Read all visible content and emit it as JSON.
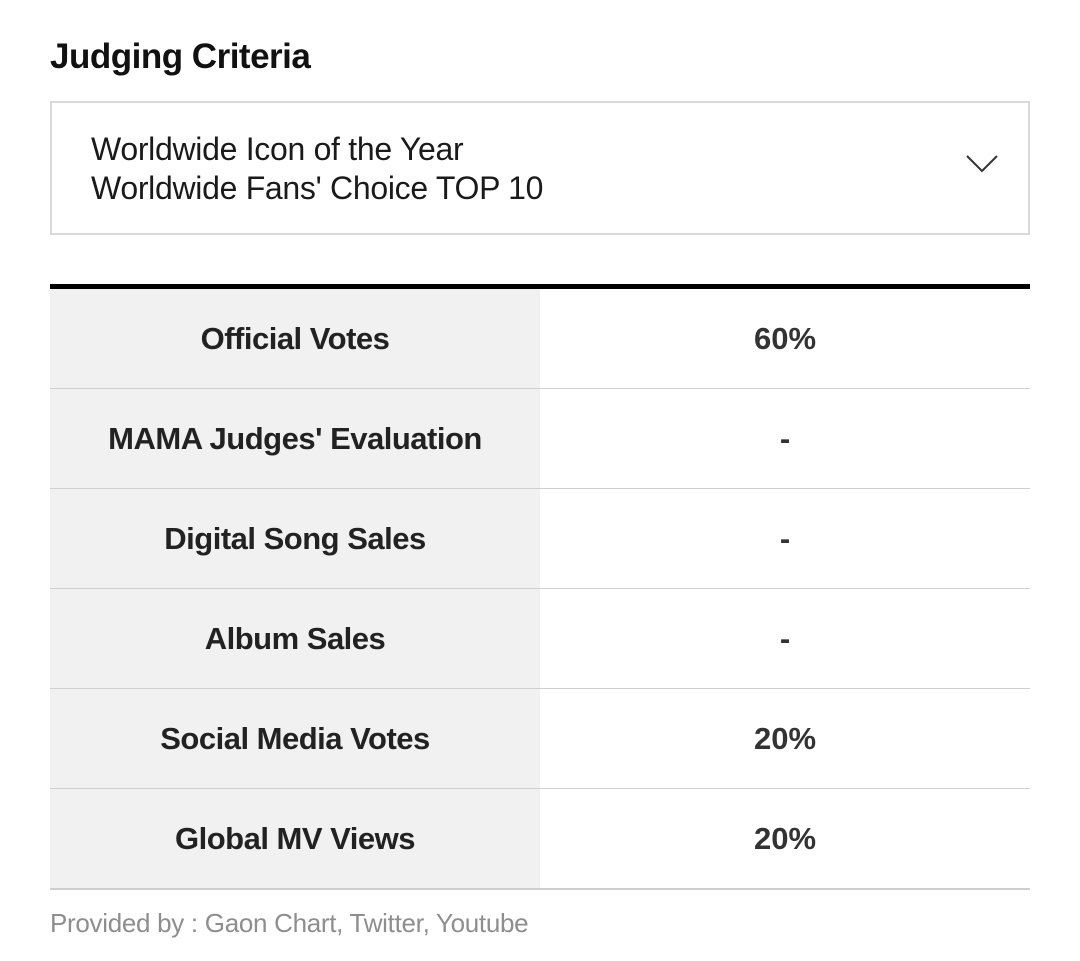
{
  "heading": "Judging Criteria",
  "dropdown": {
    "line1": "Worldwide Icon of the Year",
    "line2": "Worldwide Fans' Choice TOP 10",
    "icon": "chevron-down-icon"
  },
  "criteria": [
    {
      "label": "Official Votes",
      "value": "60%"
    },
    {
      "label": "MAMA Judges' Evaluation",
      "value": "-"
    },
    {
      "label": "Digital Song Sales",
      "value": "-"
    },
    {
      "label": "Album Sales",
      "value": "-"
    },
    {
      "label": "Social Media Votes",
      "value": "20%"
    },
    {
      "label": "Global MV Views",
      "value": "20%"
    }
  ],
  "footer": "Provided by : Gaon Chart, Twitter, Youtube",
  "colors": {
    "header_rule": "#000000",
    "label_background": "#f1f1f1",
    "row_border": "#cfcfcf",
    "footer_text": "#8e8e8e"
  }
}
